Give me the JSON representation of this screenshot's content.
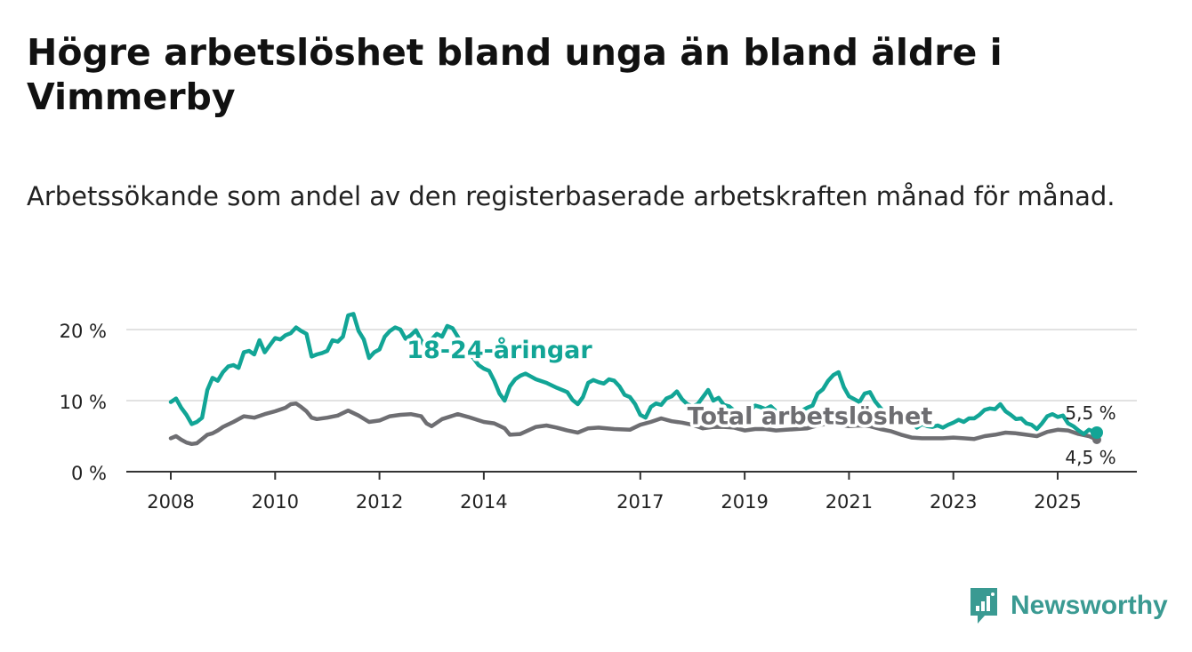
{
  "title": "Högre arbetslöshet bland unga än bland äldre i Vimmerby",
  "subtitle": "Arbetssökande som andel av den registerbaserade arbetskraften månad för månad.",
  "brand": {
    "name": "Newsworthy",
    "icon": "newsworthy-logo-icon"
  },
  "colors": {
    "youth": "#12a596",
    "total": "#6e6e72",
    "grid": "#d9d9d9",
    "axis": "#333333",
    "text": "#222222"
  },
  "chart_data": {
    "type": "line",
    "title": "Högre arbetslöshet bland unga än bland äldre i Vimmerby",
    "ylim": [
      0,
      22
    ],
    "xlim": [
      2008.0,
      2025.75
    ],
    "y_ticks": [
      {
        "value": 0,
        "label": "0 %"
      },
      {
        "value": 10,
        "label": "10 %"
      },
      {
        "value": 20,
        "label": "20 %"
      }
    ],
    "x_ticks": [
      {
        "value": 2008,
        "label": "2008"
      },
      {
        "value": 2010,
        "label": "2010"
      },
      {
        "value": 2012,
        "label": "2012"
      },
      {
        "value": 2014,
        "label": "2014"
      },
      {
        "value": 2017,
        "label": "2017"
      },
      {
        "value": 2019,
        "label": "2019"
      },
      {
        "value": 2021,
        "label": "2021"
      },
      {
        "value": 2023,
        "label": "2023"
      },
      {
        "value": 2025,
        "label": "2025"
      }
    ],
    "grid": true,
    "series": [
      {
        "name": "18-24-åringar",
        "label": "18-24-åringar",
        "color": "#12a596",
        "end_label": "5,5 %",
        "label_at": [
          2014.3,
          16.0
        ],
        "points": [
          [
            2008.0,
            9.8
          ],
          [
            2008.1,
            10.3
          ],
          [
            2008.2,
            9.0
          ],
          [
            2008.3,
            8.0
          ],
          [
            2008.4,
            6.7
          ],
          [
            2008.5,
            7.0
          ],
          [
            2008.6,
            7.6
          ],
          [
            2008.7,
            11.5
          ],
          [
            2008.8,
            13.2
          ],
          [
            2008.9,
            12.8
          ],
          [
            2009.0,
            14.0
          ],
          [
            2009.1,
            14.8
          ],
          [
            2009.2,
            15.0
          ],
          [
            2009.3,
            14.6
          ],
          [
            2009.4,
            16.8
          ],
          [
            2009.5,
            17.0
          ],
          [
            2009.6,
            16.5
          ],
          [
            2009.7,
            18.5
          ],
          [
            2009.8,
            16.8
          ],
          [
            2009.9,
            17.8
          ],
          [
            2010.0,
            18.8
          ],
          [
            2010.1,
            18.6
          ],
          [
            2010.2,
            19.2
          ],
          [
            2010.3,
            19.5
          ],
          [
            2010.4,
            20.3
          ],
          [
            2010.5,
            19.8
          ],
          [
            2010.6,
            19.4
          ],
          [
            2010.7,
            16.2
          ],
          [
            2010.8,
            16.5
          ],
          [
            2010.9,
            16.7
          ],
          [
            2011.0,
            17.0
          ],
          [
            2011.1,
            18.5
          ],
          [
            2011.2,
            18.3
          ],
          [
            2011.3,
            19.0
          ],
          [
            2011.4,
            22.0
          ],
          [
            2011.5,
            22.2
          ],
          [
            2011.6,
            19.8
          ],
          [
            2011.7,
            18.6
          ],
          [
            2011.8,
            16.0
          ],
          [
            2011.9,
            16.8
          ],
          [
            2012.0,
            17.2
          ],
          [
            2012.1,
            19.0
          ],
          [
            2012.2,
            19.8
          ],
          [
            2012.3,
            20.3
          ],
          [
            2012.4,
            20.0
          ],
          [
            2012.5,
            18.7
          ],
          [
            2012.6,
            19.2
          ],
          [
            2012.7,
            19.9
          ],
          [
            2012.8,
            18.5
          ],
          [
            2012.9,
            17.2
          ],
          [
            2013.0,
            18.6
          ],
          [
            2013.1,
            19.4
          ],
          [
            2013.2,
            19.0
          ],
          [
            2013.3,
            20.5
          ],
          [
            2013.4,
            20.2
          ],
          [
            2013.5,
            19.0
          ],
          [
            2013.6,
            17.6
          ],
          [
            2013.7,
            16.8
          ],
          [
            2013.8,
            16.0
          ],
          [
            2013.9,
            15.0
          ],
          [
            2014.0,
            14.5
          ],
          [
            2014.1,
            14.2
          ],
          [
            2014.2,
            12.8
          ],
          [
            2014.3,
            11.0
          ],
          [
            2014.4,
            10.0
          ],
          [
            2014.5,
            12.0
          ],
          [
            2014.6,
            13.0
          ],
          [
            2014.7,
            13.5
          ],
          [
            2014.8,
            13.8
          ],
          [
            2014.9,
            13.4
          ],
          [
            2015.0,
            13.0
          ],
          [
            2015.2,
            12.5
          ],
          [
            2015.4,
            11.8
          ],
          [
            2015.6,
            11.2
          ],
          [
            2015.7,
            10.1
          ],
          [
            2015.8,
            9.5
          ],
          [
            2015.9,
            10.5
          ],
          [
            2016.0,
            12.5
          ],
          [
            2016.1,
            12.9
          ],
          [
            2016.2,
            12.6
          ],
          [
            2016.3,
            12.4
          ],
          [
            2016.4,
            13.0
          ],
          [
            2016.5,
            12.8
          ],
          [
            2016.6,
            12.0
          ],
          [
            2016.7,
            10.8
          ],
          [
            2016.8,
            10.5
          ],
          [
            2016.9,
            9.5
          ],
          [
            2017.0,
            8.0
          ],
          [
            2017.1,
            7.6
          ],
          [
            2017.2,
            9.1
          ],
          [
            2017.3,
            9.6
          ],
          [
            2017.4,
            9.4
          ],
          [
            2017.5,
            10.3
          ],
          [
            2017.6,
            10.6
          ],
          [
            2017.7,
            11.3
          ],
          [
            2017.8,
            10.2
          ],
          [
            2017.9,
            9.5
          ],
          [
            2018.0,
            9.2
          ],
          [
            2018.1,
            9.5
          ],
          [
            2018.2,
            10.5
          ],
          [
            2018.3,
            11.5
          ],
          [
            2018.4,
            10.0
          ],
          [
            2018.5,
            10.4
          ],
          [
            2018.6,
            9.4
          ],
          [
            2018.7,
            9.2
          ],
          [
            2018.8,
            8.6
          ],
          [
            2018.9,
            8.0
          ],
          [
            2019.0,
            8.2
          ],
          [
            2019.1,
            8.6
          ],
          [
            2019.2,
            9.3
          ],
          [
            2019.3,
            9.1
          ],
          [
            2019.4,
            8.8
          ],
          [
            2019.5,
            9.2
          ],
          [
            2019.6,
            8.5
          ],
          [
            2019.7,
            8.2
          ],
          [
            2019.8,
            8.0
          ],
          [
            2019.9,
            7.8
          ],
          [
            2020.0,
            8.2
          ],
          [
            2020.1,
            8.6
          ],
          [
            2020.2,
            9.0
          ],
          [
            2020.3,
            9.3
          ],
          [
            2020.4,
            11.0
          ],
          [
            2020.5,
            11.6
          ],
          [
            2020.6,
            12.8
          ],
          [
            2020.7,
            13.6
          ],
          [
            2020.8,
            14.0
          ],
          [
            2020.9,
            11.9
          ],
          [
            2021.0,
            10.6
          ],
          [
            2021.1,
            10.2
          ],
          [
            2021.2,
            9.8
          ],
          [
            2021.3,
            11.0
          ],
          [
            2021.4,
            11.2
          ],
          [
            2021.5,
            9.9
          ],
          [
            2021.6,
            9.0
          ],
          [
            2021.7,
            8.2
          ],
          [
            2021.8,
            7.6
          ],
          [
            2021.9,
            7.8
          ],
          [
            2022.0,
            7.2
          ],
          [
            2022.1,
            6.9
          ],
          [
            2022.2,
            7.0
          ],
          [
            2022.3,
            6.2
          ],
          [
            2022.4,
            6.7
          ],
          [
            2022.5,
            6.4
          ],
          [
            2022.6,
            6.3
          ],
          [
            2022.7,
            6.5
          ],
          [
            2022.8,
            6.2
          ],
          [
            2022.9,
            6.6
          ],
          [
            2023.0,
            6.9
          ],
          [
            2023.1,
            7.3
          ],
          [
            2023.2,
            7.0
          ],
          [
            2023.3,
            7.5
          ],
          [
            2023.4,
            7.5
          ],
          [
            2023.5,
            8.0
          ],
          [
            2023.6,
            8.7
          ],
          [
            2023.7,
            8.9
          ],
          [
            2023.8,
            8.8
          ],
          [
            2023.9,
            9.5
          ],
          [
            2024.0,
            8.5
          ],
          [
            2024.1,
            8.0
          ],
          [
            2024.2,
            7.4
          ],
          [
            2024.3,
            7.5
          ],
          [
            2024.4,
            6.8
          ],
          [
            2024.5,
            6.6
          ],
          [
            2024.6,
            6.0
          ],
          [
            2024.7,
            6.8
          ],
          [
            2024.8,
            7.8
          ],
          [
            2024.9,
            8.1
          ],
          [
            2025.0,
            7.7
          ],
          [
            2025.1,
            7.9
          ],
          [
            2025.2,
            6.8
          ],
          [
            2025.3,
            6.4
          ],
          [
            2025.4,
            5.8
          ],
          [
            2025.5,
            5.3
          ],
          [
            2025.6,
            5.9
          ],
          [
            2025.7,
            5.6
          ],
          [
            2025.75,
            5.5
          ]
        ]
      },
      {
        "name": "Total arbetslöshet",
        "label": "Total arbetslöshet",
        "color": "#6e6e72",
        "end_label": "4,5 %",
        "label_at": [
          2020.25,
          6.7
        ],
        "points": [
          [
            2008.0,
            4.7
          ],
          [
            2008.1,
            5.0
          ],
          [
            2008.2,
            4.5
          ],
          [
            2008.3,
            4.1
          ],
          [
            2008.4,
            3.9
          ],
          [
            2008.5,
            4.0
          ],
          [
            2008.6,
            4.6
          ],
          [
            2008.7,
            5.2
          ],
          [
            2008.8,
            5.4
          ],
          [
            2008.9,
            5.8
          ],
          [
            2009.0,
            6.3
          ],
          [
            2009.2,
            7.0
          ],
          [
            2009.4,
            7.8
          ],
          [
            2009.6,
            7.6
          ],
          [
            2009.8,
            8.1
          ],
          [
            2010.0,
            8.5
          ],
          [
            2010.2,
            9.0
          ],
          [
            2010.3,
            9.5
          ],
          [
            2010.4,
            9.6
          ],
          [
            2010.5,
            9.1
          ],
          [
            2010.6,
            8.5
          ],
          [
            2010.7,
            7.6
          ],
          [
            2010.8,
            7.4
          ],
          [
            2011.0,
            7.6
          ],
          [
            2011.2,
            7.9
          ],
          [
            2011.4,
            8.6
          ],
          [
            2011.6,
            7.9
          ],
          [
            2011.8,
            7.0
          ],
          [
            2012.0,
            7.2
          ],
          [
            2012.2,
            7.8
          ],
          [
            2012.4,
            8.0
          ],
          [
            2012.6,
            8.1
          ],
          [
            2012.8,
            7.8
          ],
          [
            2012.9,
            6.8
          ],
          [
            2013.0,
            6.4
          ],
          [
            2013.2,
            7.4
          ],
          [
            2013.5,
            8.1
          ],
          [
            2013.7,
            7.7
          ],
          [
            2014.0,
            7.0
          ],
          [
            2014.2,
            6.8
          ],
          [
            2014.4,
            6.1
          ],
          [
            2014.5,
            5.2
          ],
          [
            2014.7,
            5.3
          ],
          [
            2015.0,
            6.3
          ],
          [
            2015.2,
            6.5
          ],
          [
            2015.4,
            6.2
          ],
          [
            2015.6,
            5.8
          ],
          [
            2015.8,
            5.5
          ],
          [
            2016.0,
            6.1
          ],
          [
            2016.2,
            6.2
          ],
          [
            2016.5,
            6.0
          ],
          [
            2016.8,
            5.9
          ],
          [
            2017.0,
            6.6
          ],
          [
            2017.2,
            7.0
          ],
          [
            2017.4,
            7.5
          ],
          [
            2017.6,
            7.1
          ],
          [
            2017.8,
            6.9
          ],
          [
            2018.0,
            6.6
          ],
          [
            2018.2,
            6.1
          ],
          [
            2018.4,
            6.3
          ],
          [
            2018.6,
            6.3
          ],
          [
            2018.8,
            6.2
          ],
          [
            2019.0,
            5.8
          ],
          [
            2019.2,
            6.0
          ],
          [
            2019.4,
            6.0
          ],
          [
            2019.6,
            5.8
          ],
          [
            2019.8,
            5.9
          ],
          [
            2020.0,
            6.0
          ],
          [
            2020.2,
            6.1
          ],
          [
            2020.4,
            6.5
          ],
          [
            2020.6,
            6.8
          ],
          [
            2020.8,
            6.6
          ],
          [
            2021.0,
            6.4
          ],
          [
            2021.2,
            6.5
          ],
          [
            2021.4,
            6.4
          ],
          [
            2021.6,
            6.0
          ],
          [
            2021.8,
            5.7
          ],
          [
            2022.0,
            5.2
          ],
          [
            2022.2,
            4.8
          ],
          [
            2022.4,
            4.7
          ],
          [
            2022.6,
            4.7
          ],
          [
            2022.8,
            4.7
          ],
          [
            2023.0,
            4.8
          ],
          [
            2023.2,
            4.7
          ],
          [
            2023.4,
            4.6
          ],
          [
            2023.6,
            5.0
          ],
          [
            2023.8,
            5.2
          ],
          [
            2024.0,
            5.5
          ],
          [
            2024.2,
            5.4
          ],
          [
            2024.4,
            5.2
          ],
          [
            2024.6,
            5.0
          ],
          [
            2024.8,
            5.6
          ],
          [
            2025.0,
            5.9
          ],
          [
            2025.2,
            5.8
          ],
          [
            2025.4,
            5.3
          ],
          [
            2025.6,
            5.0
          ],
          [
            2025.75,
            4.5
          ]
        ]
      }
    ]
  }
}
